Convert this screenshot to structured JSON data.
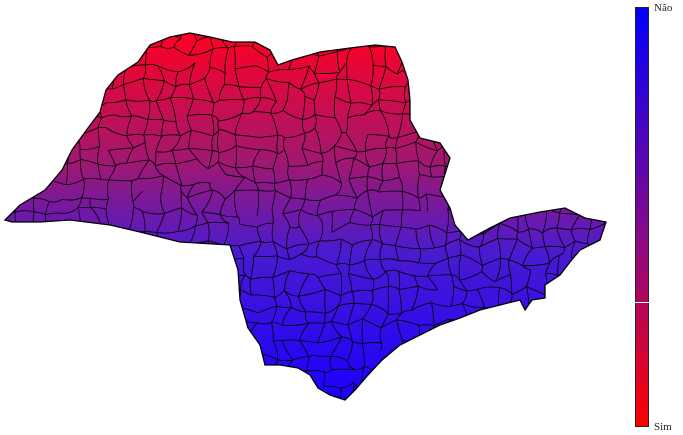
{
  "legend": {
    "top_label": "Não",
    "bottom_label": "Sim",
    "colors": {
      "top": "#0000ff",
      "middle": "#8a0a88",
      "bottom": "#ff0000"
    }
  },
  "map": {
    "border_color": "#000000"
  }
}
